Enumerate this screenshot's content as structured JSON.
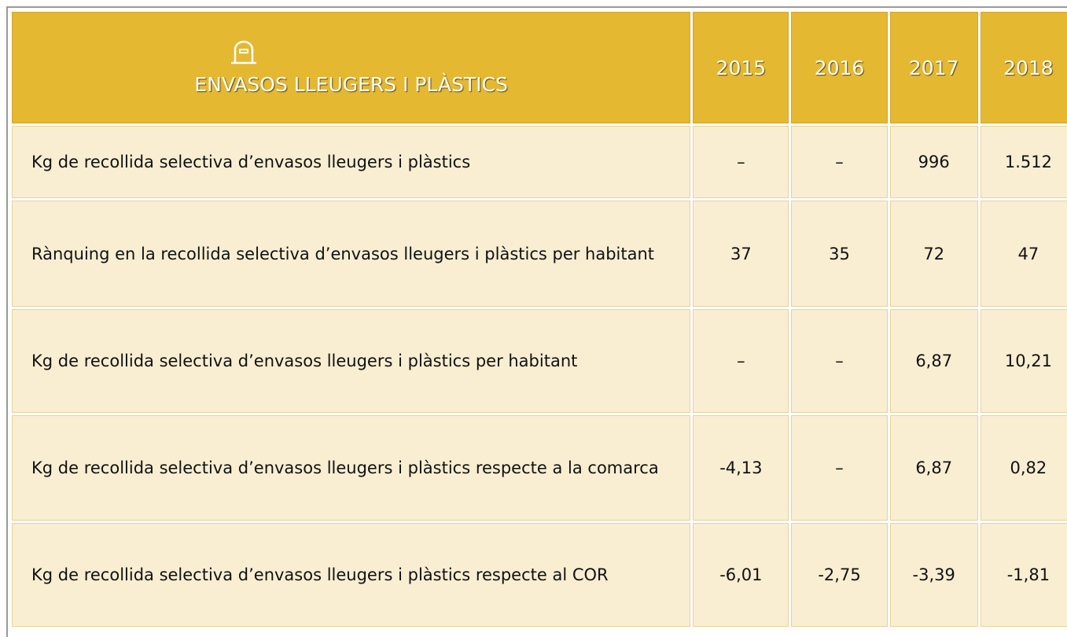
{
  "table": {
    "header": {
      "title": "ENVASOS LLEUGERS I PLÀSTICS",
      "years": [
        "2015",
        "2016",
        "2017",
        "2018"
      ]
    },
    "rows": [
      {
        "label": "Kg de recollida selectiva d’envasos lleugers i plàstics",
        "values": [
          "–",
          "–",
          "996",
          "1.512"
        ]
      },
      {
        "label": "Rànquing en la recollida selectiva d’envasos lleugers i plàstics per habitant",
        "values": [
          "37",
          "35",
          "72",
          "47"
        ]
      },
      {
        "label": "Kg de recollida selectiva d’envasos lleugers i plàstics per habitant",
        "values": [
          "–",
          "–",
          "6,87",
          "10,21"
        ]
      },
      {
        "label": "Kg de recollida selectiva d’envasos lleugers i plàstics respecte a la comarca",
        "values": [
          "-4,13",
          "–",
          "6,87",
          "0,82"
        ]
      },
      {
        "label": "Kg de recollida selectiva d’envasos lleugers i plàstics respecte al COR",
        "values": [
          "-6,01",
          "-2,75",
          "-3,39",
          "-1,81"
        ]
      }
    ]
  }
}
